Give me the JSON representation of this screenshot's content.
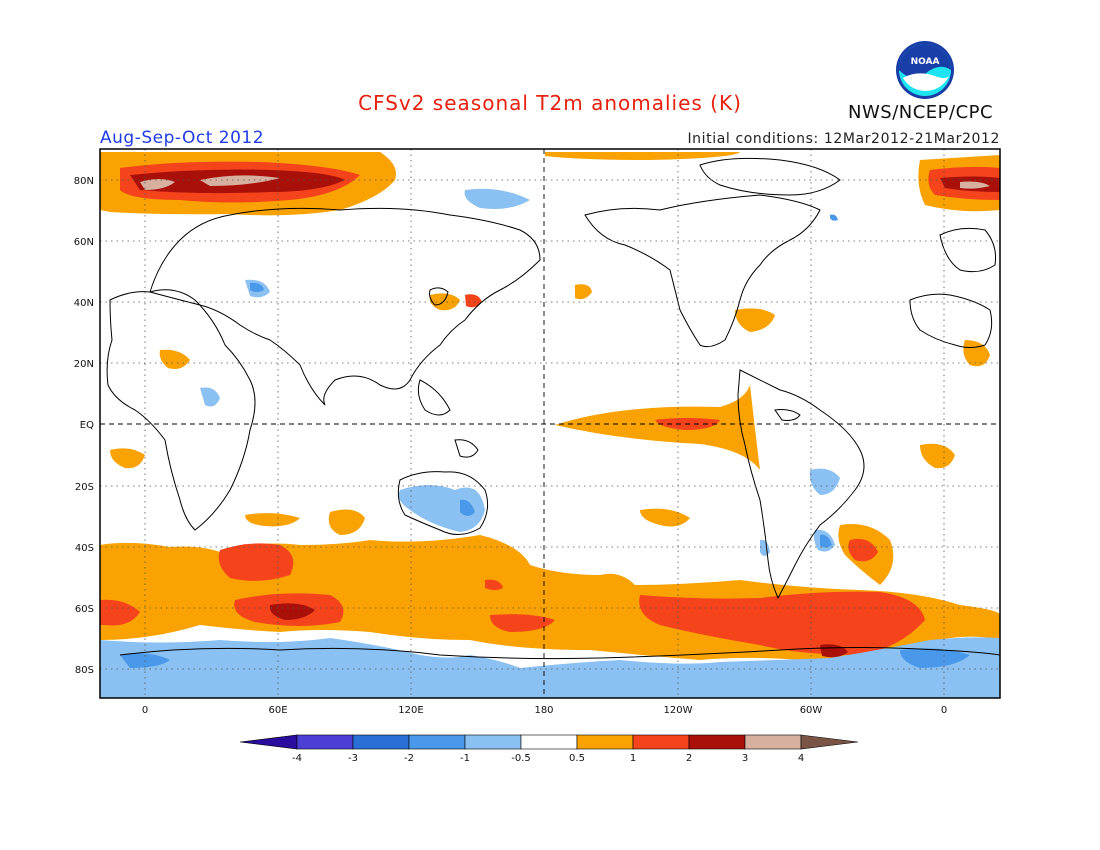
{
  "title": "CFSv2 seasonal T2m anomalies (K)",
  "agency": "NWS/NCEP/CPC",
  "logo_text": "NOAA",
  "season": "Aug-Sep-Oct 2012",
  "initial_conditions": "Initial conditions: 12Mar2012-21Mar2012",
  "map": {
    "lat_labels": [
      "80N",
      "60N",
      "40N",
      "20N",
      "EQ",
      "20S",
      "40S",
      "60S",
      "80S"
    ],
    "lon_labels": [
      "0",
      "60E",
      "120E",
      "180",
      "120W",
      "60W",
      "0"
    ],
    "colors": {
      "ocean": "#ffffff",
      "coast": "#000000",
      "grid": "#555555"
    }
  },
  "colorbar": {
    "labels": [
      "-4",
      "-3",
      "-2",
      "-1",
      "-0.5",
      "0.5",
      "1",
      "2",
      "3",
      "4"
    ],
    "colors": [
      "#2a0c9e",
      "#4b3fd6",
      "#2a6fd6",
      "#4a98ea",
      "#8ac0f2",
      "#ffffff",
      "#f9a202",
      "#f5431b",
      "#a81009",
      "#d8b0a0",
      "#7a5545"
    ]
  },
  "legend_position": "bottom-center"
}
